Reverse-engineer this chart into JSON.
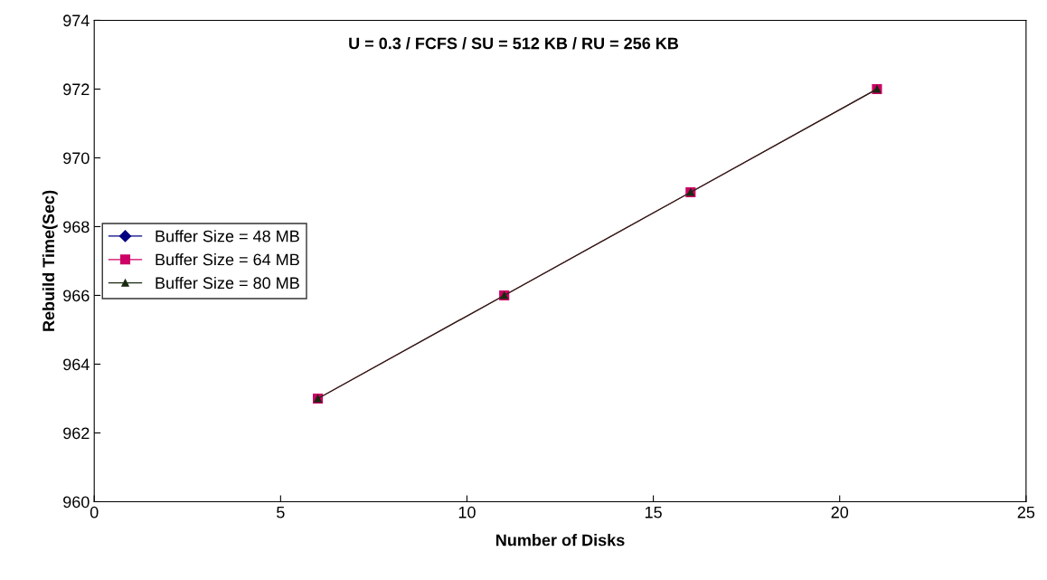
{
  "chart_data": {
    "type": "line",
    "title": "U = 0.3 / FCFS / SU = 512 KB / RU = 256 KB",
    "xlabel": "Number of Disks",
    "ylabel": "Rebuild Time(Sec)",
    "x": [
      6,
      11,
      16,
      21
    ],
    "series": [
      {
        "name": "Buffer Size = 48 MB",
        "color": "#000080",
        "marker": "diamond",
        "values": [
          null,
          null,
          null,
          null
        ]
      },
      {
        "name": "Buffer Size = 64 MB",
        "color": "#cc0066",
        "marker": "square",
        "values": [
          963,
          966,
          969,
          972
        ]
      },
      {
        "name": "Buffer Size = 80 MB",
        "color": "#1a2a10",
        "marker": "triangle",
        "values": [
          963,
          966,
          969,
          972
        ]
      }
    ],
    "xlim": [
      0,
      25
    ],
    "xticks": [
      0,
      5,
      10,
      15,
      20,
      25
    ],
    "ylim": [
      960,
      974
    ],
    "yticks": [
      960,
      962,
      964,
      966,
      968,
      970,
      972,
      974
    ],
    "grid": false,
    "legend": "center left",
    "line_style": "solid"
  }
}
